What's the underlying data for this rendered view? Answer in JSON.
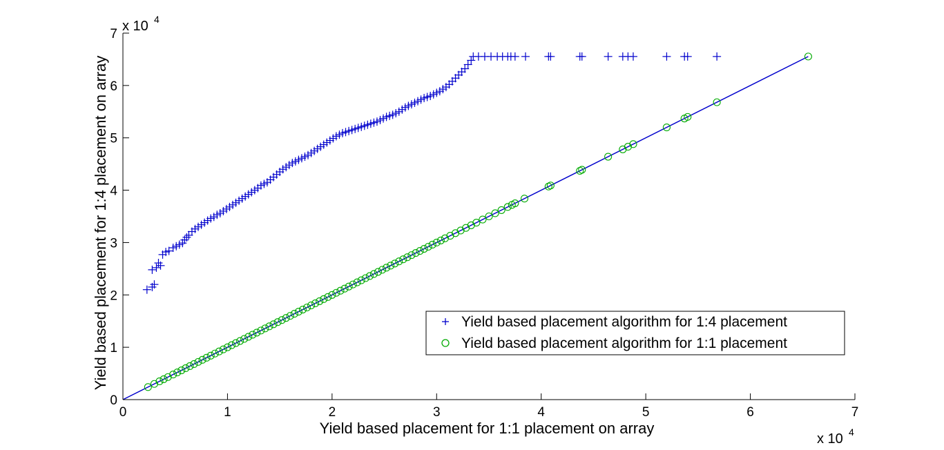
{
  "chart_data": {
    "type": "scatter",
    "title": "",
    "xlabel": "Yield based placement for 1:1 placement on array",
    "ylabel": "Yield based placement for 1:4 placement on array",
    "x_multiplier": "x 10",
    "x_multiplier_exp": "4",
    "y_multiplier": "x 10",
    "y_multiplier_exp": "4",
    "xlim": [
      0,
      70000
    ],
    "ylim": [
      0,
      70000
    ],
    "x_ticks": [
      0,
      10000,
      20000,
      30000,
      40000,
      50000,
      60000,
      70000
    ],
    "x_tick_labels": [
      "0",
      "1",
      "2",
      "3",
      "4",
      "5",
      "6",
      "7"
    ],
    "y_ticks": [
      0,
      10000,
      20000,
      30000,
      40000,
      50000,
      60000,
      70000
    ],
    "y_tick_labels": [
      "0",
      "1",
      "2",
      "3",
      "4",
      "5",
      "6",
      "7"
    ],
    "grid": false,
    "legend_position": "lower-right",
    "reference_line": {
      "x": [
        0,
        65536
      ],
      "y": [
        0,
        65536
      ],
      "color": "#0000cc"
    },
    "series": [
      {
        "name": "Yield based placement algorithm for 1:4 placement",
        "marker": "plus",
        "color": "#0000cc",
        "points": [
          [
            2300,
            21000
          ],
          [
            2800,
            21500
          ],
          [
            3000,
            22000
          ],
          [
            2800,
            24800
          ],
          [
            3200,
            25200
          ],
          [
            3600,
            25600
          ],
          [
            3400,
            26100
          ],
          [
            3800,
            27700
          ],
          [
            4100,
            28200
          ],
          [
            4400,
            28400
          ],
          [
            4800,
            29000
          ],
          [
            5100,
            29300
          ],
          [
            5400,
            29600
          ],
          [
            5700,
            29900
          ],
          [
            5900,
            30500
          ],
          [
            6100,
            31000
          ],
          [
            6300,
            31400
          ],
          [
            6600,
            32100
          ],
          [
            6900,
            32600
          ],
          [
            7200,
            33000
          ],
          [
            7500,
            33400
          ],
          [
            7800,
            33800
          ],
          [
            8100,
            34200
          ],
          [
            8400,
            34600
          ],
          [
            8700,
            34900
          ],
          [
            9000,
            35300
          ],
          [
            9300,
            35600
          ],
          [
            9600,
            36000
          ],
          [
            9900,
            36400
          ],
          [
            10200,
            36800
          ],
          [
            10500,
            37200
          ],
          [
            10800,
            37600
          ],
          [
            11100,
            38000
          ],
          [
            11400,
            38400
          ],
          [
            11700,
            38800
          ],
          [
            12000,
            39200
          ],
          [
            12300,
            39600
          ],
          [
            12600,
            40000
          ],
          [
            12900,
            40400
          ],
          [
            13200,
            40900
          ],
          [
            13500,
            41200
          ],
          [
            13800,
            41500
          ],
          [
            14100,
            42000
          ],
          [
            14400,
            42500
          ],
          [
            14700,
            43000
          ],
          [
            15000,
            43500
          ],
          [
            15300,
            44000
          ],
          [
            15600,
            44400
          ],
          [
            15900,
            44800
          ],
          [
            16200,
            45200
          ],
          [
            16500,
            45500
          ],
          [
            16800,
            45800
          ],
          [
            17100,
            46100
          ],
          [
            17400,
            46400
          ],
          [
            17700,
            46700
          ],
          [
            18000,
            47100
          ],
          [
            18300,
            47500
          ],
          [
            18600,
            47900
          ],
          [
            18900,
            48300
          ],
          [
            19200,
            48700
          ],
          [
            19500,
            49100
          ],
          [
            19800,
            49500
          ],
          [
            20100,
            49900
          ],
          [
            20400,
            50300
          ],
          [
            20700,
            50600
          ],
          [
            21000,
            50900
          ],
          [
            21300,
            51100
          ],
          [
            21600,
            51300
          ],
          [
            21900,
            51500
          ],
          [
            22200,
            51700
          ],
          [
            22500,
            51900
          ],
          [
            22800,
            52100
          ],
          [
            23100,
            52300
          ],
          [
            23400,
            52500
          ],
          [
            23700,
            52700
          ],
          [
            24000,
            52900
          ],
          [
            24300,
            53100
          ],
          [
            24600,
            53400
          ],
          [
            24900,
            53700
          ],
          [
            25200,
            54000
          ],
          [
            25500,
            54200
          ],
          [
            25800,
            54400
          ],
          [
            26100,
            54700
          ],
          [
            26400,
            55000
          ],
          [
            26700,
            55400
          ],
          [
            27000,
            55800
          ],
          [
            27300,
            56100
          ],
          [
            27600,
            56400
          ],
          [
            27900,
            56700
          ],
          [
            28200,
            57000
          ],
          [
            28500,
            57300
          ],
          [
            28800,
            57600
          ],
          [
            29100,
            57800
          ],
          [
            29400,
            58000
          ],
          [
            29700,
            58300
          ],
          [
            30000,
            58600
          ],
          [
            30300,
            58900
          ],
          [
            30600,
            59300
          ],
          [
            30900,
            59700
          ],
          [
            31200,
            60200
          ],
          [
            31500,
            60800
          ],
          [
            31800,
            61400
          ],
          [
            32100,
            62000
          ],
          [
            32400,
            62600
          ],
          [
            32700,
            63200
          ],
          [
            33000,
            64000
          ],
          [
            33300,
            64800
          ],
          [
            33500,
            65536
          ],
          [
            34000,
            65536
          ],
          [
            34600,
            65536
          ],
          [
            35200,
            65536
          ],
          [
            35800,
            65536
          ],
          [
            36300,
            65536
          ],
          [
            36800,
            65536
          ],
          [
            37100,
            65536
          ],
          [
            37500,
            65536
          ],
          [
            38500,
            65536
          ],
          [
            40700,
            65536
          ],
          [
            40900,
            65536
          ],
          [
            43700,
            65536
          ],
          [
            43900,
            65536
          ],
          [
            46400,
            65536
          ],
          [
            47800,
            65536
          ],
          [
            48300,
            65536
          ],
          [
            48800,
            65536
          ],
          [
            52000,
            65536
          ],
          [
            53700,
            65536
          ],
          [
            54000,
            65536
          ],
          [
            56800,
            65536
          ]
        ]
      },
      {
        "name": "Yield based placement algorithm for 1:1 placement",
        "marker": "circle",
        "color": "#00aa00",
        "points": [
          [
            2400,
            2400
          ],
          [
            3000,
            3000
          ],
          [
            3500,
            3500
          ],
          [
            3900,
            3900
          ],
          [
            4300,
            4300
          ],
          [
            4800,
            4800
          ],
          [
            5200,
            5200
          ],
          [
            5600,
            5600
          ],
          [
            6000,
            6000
          ],
          [
            6400,
            6400
          ],
          [
            6800,
            6800
          ],
          [
            7200,
            7200
          ],
          [
            7600,
            7600
          ],
          [
            8000,
            8000
          ],
          [
            8400,
            8400
          ],
          [
            8800,
            8800
          ],
          [
            9200,
            9200
          ],
          [
            9600,
            9600
          ],
          [
            10000,
            10000
          ],
          [
            10400,
            10400
          ],
          [
            10800,
            10800
          ],
          [
            11200,
            11200
          ],
          [
            11600,
            11600
          ],
          [
            12000,
            12000
          ],
          [
            12400,
            12400
          ],
          [
            12800,
            12800
          ],
          [
            13200,
            13200
          ],
          [
            13600,
            13600
          ],
          [
            14000,
            14000
          ],
          [
            14400,
            14400
          ],
          [
            14800,
            14800
          ],
          [
            15200,
            15200
          ],
          [
            15600,
            15600
          ],
          [
            16000,
            16000
          ],
          [
            16400,
            16400
          ],
          [
            16800,
            16800
          ],
          [
            17200,
            17200
          ],
          [
            17600,
            17600
          ],
          [
            18000,
            18000
          ],
          [
            18400,
            18400
          ],
          [
            18800,
            18800
          ],
          [
            19200,
            19200
          ],
          [
            19600,
            19600
          ],
          [
            20000,
            20000
          ],
          [
            20400,
            20400
          ],
          [
            20800,
            20800
          ],
          [
            21200,
            21200
          ],
          [
            21600,
            21600
          ],
          [
            22000,
            22000
          ],
          [
            22400,
            22400
          ],
          [
            22800,
            22800
          ],
          [
            23200,
            23200
          ],
          [
            23600,
            23600
          ],
          [
            24000,
            24000
          ],
          [
            24400,
            24400
          ],
          [
            24800,
            24800
          ],
          [
            25200,
            25200
          ],
          [
            25600,
            25600
          ],
          [
            26000,
            26000
          ],
          [
            26400,
            26400
          ],
          [
            26800,
            26800
          ],
          [
            27200,
            27200
          ],
          [
            27600,
            27600
          ],
          [
            28000,
            28000
          ],
          [
            28400,
            28400
          ],
          [
            28800,
            28800
          ],
          [
            29200,
            29200
          ],
          [
            29600,
            29600
          ],
          [
            30000,
            30000
          ],
          [
            30400,
            30400
          ],
          [
            30800,
            30800
          ],
          [
            31300,
            31300
          ],
          [
            31800,
            31800
          ],
          [
            32300,
            32300
          ],
          [
            32800,
            32800
          ],
          [
            33300,
            33300
          ],
          [
            33800,
            33800
          ],
          [
            34400,
            34400
          ],
          [
            35000,
            35000
          ],
          [
            35600,
            35600
          ],
          [
            36200,
            36200
          ],
          [
            36800,
            36800
          ],
          [
            37200,
            37200
          ],
          [
            37500,
            37500
          ],
          [
            38400,
            38400
          ],
          [
            40700,
            40700
          ],
          [
            40900,
            40900
          ],
          [
            43700,
            43700
          ],
          [
            43900,
            43900
          ],
          [
            46400,
            46400
          ],
          [
            47800,
            47800
          ],
          [
            48300,
            48300
          ],
          [
            48800,
            48800
          ],
          [
            52000,
            52000
          ],
          [
            53700,
            53700
          ],
          [
            54000,
            54000
          ],
          [
            56800,
            56800
          ],
          [
            65536,
            65536
          ]
        ]
      }
    ]
  }
}
